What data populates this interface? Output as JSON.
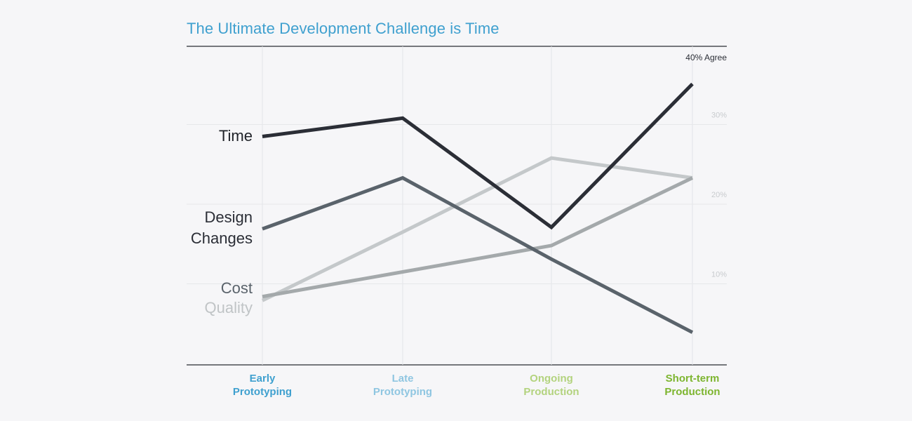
{
  "title": "The Ultimate Development Challenge is Time",
  "chart_data": {
    "type": "line",
    "title": "The Ultimate Development Challenge is Time",
    "xlabel": "",
    "ylabel": "",
    "categories": [
      {
        "lines": [
          "Early",
          "Prototyping"
        ],
        "color": "#3fa0cf"
      },
      {
        "lines": [
          "Late",
          "Prototyping"
        ],
        "color": "#8fc6e1"
      },
      {
        "lines": [
          "Ongoing",
          "Production"
        ],
        "color": "#b3d37e"
      },
      {
        "lines": [
          "Short-term",
          "Production"
        ],
        "color": "#7db52f"
      }
    ],
    "ylim": [
      0,
      40
    ],
    "y_ticks": [
      {
        "value": 10,
        "label": "10%"
      },
      {
        "value": 20,
        "label": "20%"
      },
      {
        "value": 30,
        "label": "30%"
      }
    ],
    "y_top_label": "40% Agree",
    "grid": true,
    "series": [
      {
        "name": "Time",
        "label_lines": [
          "Time"
        ],
        "color": "#2b2e36",
        "label_color": "#1f2228",
        "values": [
          28.5,
          30.8,
          17.1,
          35.1
        ]
      },
      {
        "name": "Design Changes",
        "label_lines": [
          "Design",
          "Changes"
        ],
        "color": "#5a636b",
        "label_color": "#2b2e36",
        "values": [
          16.9,
          23.3,
          13.1,
          3.9
        ]
      },
      {
        "name": "Cost",
        "label_lines": [
          "Cost"
        ],
        "color": "#a4a9ab",
        "label_color": "#5a636b",
        "values": [
          8.4,
          11.5,
          14.8,
          23.3
        ]
      },
      {
        "name": "Quality",
        "label_lines": [
          "Quality"
        ],
        "color": "#c4c8ca",
        "label_color": "#c0c4c6",
        "values": [
          7.9,
          16.5,
          25.8,
          23.3
        ]
      }
    ]
  }
}
